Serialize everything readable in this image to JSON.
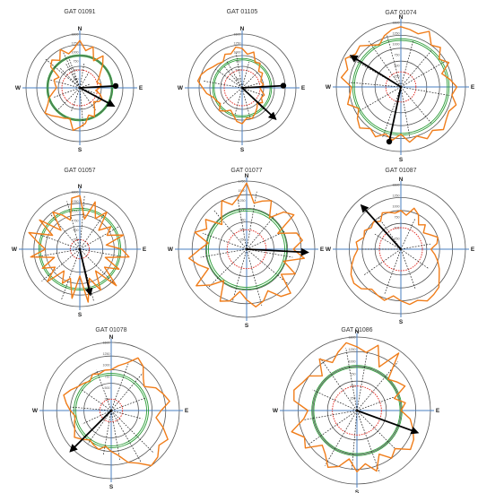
{
  "figure": {
    "background": "#ffffff",
    "colors": {
      "ring": "#555555",
      "axis": "#4a7fc1",
      "profile": "#f07d1a",
      "red_ring": "#e0241b",
      "green_ring": "#2e9e3a",
      "spokes": "#222222",
      "arrow": "#000000"
    },
    "cardinals": {
      "n": "N",
      "e": "E",
      "s": "S",
      "w": "W"
    }
  },
  "chart_data": [
    {
      "type": "polar",
      "title": "GAT 01091",
      "radial_ticks": [
        "1500",
        "1250",
        "1000",
        "750",
        "500",
        "250"
      ],
      "radial_max": 1500,
      "red_ring": 500,
      "green_rings": [
        880,
        920
      ],
      "profile": [
        1320,
        1050,
        1200,
        850,
        1100,
        900,
        700,
        600,
        500,
        600,
        550,
        450,
        600,
        700,
        650,
        550,
        700,
        900,
        800,
        1000,
        1100,
        1200,
        900,
        950,
        1000,
        1100,
        1200,
        1000,
        900,
        750,
        650,
        700,
        750,
        650,
        1000,
        1100,
        950,
        1200,
        1000,
        1100
      ],
      "spokes": [
        [
          -50,
          1250
        ],
        [
          -30,
          800
        ],
        [
          -20,
          900
        ],
        [
          10,
          700
        ],
        [
          30,
          500
        ],
        [
          70,
          300
        ],
        [
          110,
          450
        ],
        [
          145,
          800
        ],
        [
          175,
          1100
        ],
        [
          200,
          700
        ],
        [
          225,
          900
        ],
        [
          250,
          800
        ],
        [
          285,
          850
        ],
        [
          315,
          800
        ],
        [
          335,
          1150
        ]
      ],
      "arrows": [
        {
          "bearing": 87,
          "length": 1000,
          "marker": "dot"
        },
        {
          "bearing": 118,
          "length": 1050,
          "marker": "arrow"
        }
      ]
    },
    {
      "type": "polar",
      "title": "GAT 01105",
      "radial_ticks": [
        "1500",
        "1250",
        "1000",
        "750",
        "500",
        "250"
      ],
      "radial_max": 1500,
      "red_ring": 500,
      "green_rings": [
        780,
        820
      ],
      "profile": [
        1100,
        950,
        1050,
        800,
        850,
        650,
        700,
        600,
        550,
        600,
        500,
        550,
        650,
        600,
        700,
        600,
        700,
        800,
        900,
        850,
        1000,
        950,
        800,
        700,
        800,
        900,
        750,
        800,
        850,
        1000,
        1100,
        1250,
        1200,
        1100,
        1000,
        950,
        900,
        1050,
        1000,
        1150
      ],
      "spokes": [
        [
          -40,
          800
        ],
        [
          15,
          750
        ],
        [
          45,
          600
        ],
        [
          75,
          500
        ],
        [
          110,
          600
        ],
        [
          135,
          900
        ],
        [
          165,
          900
        ],
        [
          195,
          800
        ],
        [
          230,
          700
        ],
        [
          280,
          1100
        ],
        [
          305,
          900
        ],
        [
          330,
          850
        ],
        [
          350,
          1000
        ]
      ],
      "arrows": [
        {
          "bearing": 87,
          "length": 1150,
          "marker": "dot"
        },
        {
          "bearing": 133,
          "length": 1250,
          "marker": "arrow"
        }
      ]
    },
    {
      "type": "polar",
      "title": "GAT 01074",
      "radial_ticks": [
        "1500",
        "1250",
        "1000",
        "750",
        "500",
        "250"
      ],
      "radial_max": 1500,
      "red_ring": 350,
      "green_rings": [
        1080,
        1120
      ],
      "profile": [
        1400,
        1350,
        1300,
        1450,
        1200,
        1300,
        1100,
        1250,
        1000,
        1150,
        1300,
        1200,
        1350,
        1250,
        1300,
        1400,
        1250,
        1350,
        1200,
        1300,
        1100,
        1250,
        1150,
        1300,
        1200,
        1350,
        1250,
        1100,
        1300,
        1200,
        1150,
        1400,
        1300,
        1450,
        1300,
        1350,
        1200,
        1100,
        1250,
        1350
      ],
      "spokes": [
        [
          15,
          1100
        ],
        [
          40,
          1100
        ],
        [
          60,
          1200
        ],
        [
          100,
          1150
        ],
        [
          140,
          1100
        ],
        [
          170,
          1200
        ],
        [
          200,
          1250
        ],
        [
          240,
          1100
        ],
        [
          275,
          1200
        ],
        [
          300,
          1400
        ],
        [
          325,
          1300
        ],
        [
          345,
          1250
        ]
      ],
      "arrows": [
        {
          "bearing": 302,
          "length": 1350,
          "marker": "arrow"
        },
        {
          "bearing": 192,
          "length": 1300,
          "marker": "dot"
        }
      ]
    },
    {
      "type": "polar",
      "title": "GAT 01057",
      "radial_ticks": [
        "1500",
        "1250",
        "1000",
        "750",
        "500",
        "250"
      ],
      "radial_max": 1500,
      "red_ring": 250,
      "green_rings": [
        1030,
        1070
      ],
      "profile": [
        1400,
        800,
        1300,
        900,
        1200,
        700,
        1000,
        800,
        1200,
        700,
        1100,
        1300,
        700,
        1150,
        800,
        1350,
        700,
        1200,
        800,
        1400,
        700,
        1300,
        800,
        1000,
        700,
        1200,
        800,
        1100,
        700,
        1300,
        900,
        1100,
        1400,
        800,
        1300,
        700,
        1200,
        1000,
        800,
        1350
      ],
      "spokes": [
        [
          5,
          1400
        ],
        [
          35,
          1100
        ],
        [
          60,
          1200
        ],
        [
          100,
          1100
        ],
        [
          135,
          1300
        ],
        [
          165,
          1400
        ],
        [
          200,
          1400
        ],
        [
          230,
          1300
        ],
        [
          260,
          1200
        ],
        [
          290,
          1100
        ],
        [
          320,
          1200
        ],
        [
          345,
          1300
        ]
      ],
      "arrows": [
        {
          "bearing": 167,
          "length": 1200,
          "marker": "arrow"
        }
      ]
    },
    {
      "type": "polar",
      "title": "GAT 01077",
      "radial_ticks": [
        "1750",
        "1500",
        "1250",
        "1000",
        "750",
        "500",
        "250"
      ],
      "radial_max": 1750,
      "red_ring": 500,
      "green_rings": [
        980,
        1030
      ],
      "profile": [
        1700,
        1200,
        1300,
        1400,
        1000,
        1350,
        1500,
        900,
        1350,
        1450,
        1200,
        1500,
        1000,
        1400,
        1100,
        1600,
        1500,
        1200,
        1400,
        1500,
        1300,
        1100,
        1400,
        1500,
        1000,
        1300,
        1600,
        1100,
        1300,
        1500,
        1200,
        1000,
        1400,
        1150,
        1300,
        900,
        1100,
        1400,
        1200,
        1350
      ],
      "spokes": [
        [
          10,
          1500
        ],
        [
          40,
          1200
        ],
        [
          65,
          1100
        ],
        [
          100,
          1200
        ],
        [
          130,
          1400
        ],
        [
          165,
          1500
        ],
        [
          195,
          1400
        ],
        [
          225,
          1400
        ],
        [
          260,
          1200
        ],
        [
          290,
          1200
        ],
        [
          320,
          1300
        ],
        [
          350,
          1400
        ]
      ],
      "arrows": [
        {
          "bearing": 93,
          "length": 1550,
          "marker": "arrow"
        }
      ]
    },
    {
      "type": "polar",
      "title": "GAT 01087",
      "radial_ticks": [
        "1500",
        "1250",
        "1000",
        "750",
        "500",
        "250"
      ],
      "radial_max": 1500,
      "red_ring": 500,
      "green_rings": [],
      "profile": [
        900,
        800,
        1000,
        900,
        700,
        800,
        650,
        750,
        900,
        850,
        700,
        800,
        900,
        1000,
        1100,
        1250,
        1300,
        1350,
        1250,
        1300,
        1200,
        1100,
        1250,
        1200,
        1150,
        1300,
        1350,
        1300,
        1200,
        1100,
        1000,
        1050,
        900,
        950,
        850,
        900,
        800,
        950,
        900,
        850
      ],
      "spokes": [
        [
          -35,
          900
        ],
        [
          25,
          800
        ],
        [
          80,
          700
        ],
        [
          125,
          800
        ],
        [
          160,
          1000
        ],
        [
          200,
          1100
        ],
        [
          235,
          1050
        ],
        [
          270,
          900
        ],
        [
          300,
          700
        ]
      ],
      "arrows": [
        {
          "bearing": 318,
          "length": 1350,
          "marker": "arrow"
        }
      ]
    },
    {
      "type": "polar",
      "title": "GAT 01078",
      "radial_ticks": [
        "1500",
        "1250",
        "1000",
        "750",
        "500",
        "250"
      ],
      "radial_max": 1500,
      "red_ring": 250,
      "green_rings": [
        780,
        820
      ],
      "profile": [
        900,
        1000,
        1100,
        1300,
        1200,
        1000,
        900,
        1100,
        1200,
        1300,
        1100,
        1000,
        1200,
        1400,
        1300,
        1450,
        1500,
        1300,
        1200,
        1000,
        900,
        800,
        900,
        850,
        800,
        900,
        1000,
        900,
        850,
        800,
        900,
        1000,
        1100,
        1000,
        900,
        850,
        800,
        900,
        850,
        900
      ],
      "spokes": [
        [
          20,
          1100
        ],
        [
          40,
          1100
        ],
        [
          70,
          800
        ],
        [
          105,
          700
        ],
        [
          135,
          1300
        ],
        [
          150,
          1300
        ],
        [
          170,
          1100
        ],
        [
          190,
          1000
        ],
        [
          215,
          900
        ],
        [
          245,
          700
        ],
        [
          275,
          900
        ],
        [
          305,
          800
        ],
        [
          340,
          950
        ]
      ],
      "arrows": [
        {
          "bearing": 225,
          "length": 1250,
          "marker": "arrow"
        }
      ]
    },
    {
      "type": "polar",
      "title": "GAT 01086",
      "radial_ticks": [
        "1500",
        "1250",
        "1000",
        "750",
        "500",
        "250"
      ],
      "radial_max": 1500,
      "red_ring": 500,
      "green_rings": [
        880,
        920
      ],
      "profile": [
        1300,
        1200,
        1400,
        1000,
        1450,
        900,
        1000,
        1100,
        800,
        1000,
        900,
        1100,
        1200,
        1300,
        1350,
        1100,
        1200,
        1000,
        1300,
        1100,
        1250,
        1000,
        1200,
        1300,
        1100,
        1000,
        1300,
        1200,
        1400,
        1100,
        1000,
        1300,
        1350,
        1250,
        1200,
        1000,
        1300,
        1100,
        1250,
        1400
      ],
      "spokes": [
        [
          10,
          1200
        ],
        [
          40,
          1300
        ],
        [
          70,
          800
        ],
        [
          110,
          900
        ],
        [
          135,
          1100
        ],
        [
          160,
          1350
        ],
        [
          185,
          1200
        ],
        [
          210,
          1300
        ],
        [
          235,
          1200
        ],
        [
          260,
          1100
        ],
        [
          295,
          1000
        ],
        [
          325,
          1300
        ],
        [
          350,
          1300
        ]
      ],
      "arrows": [
        {
          "bearing": 110,
          "length": 1300,
          "marker": "arrow"
        }
      ]
    }
  ]
}
